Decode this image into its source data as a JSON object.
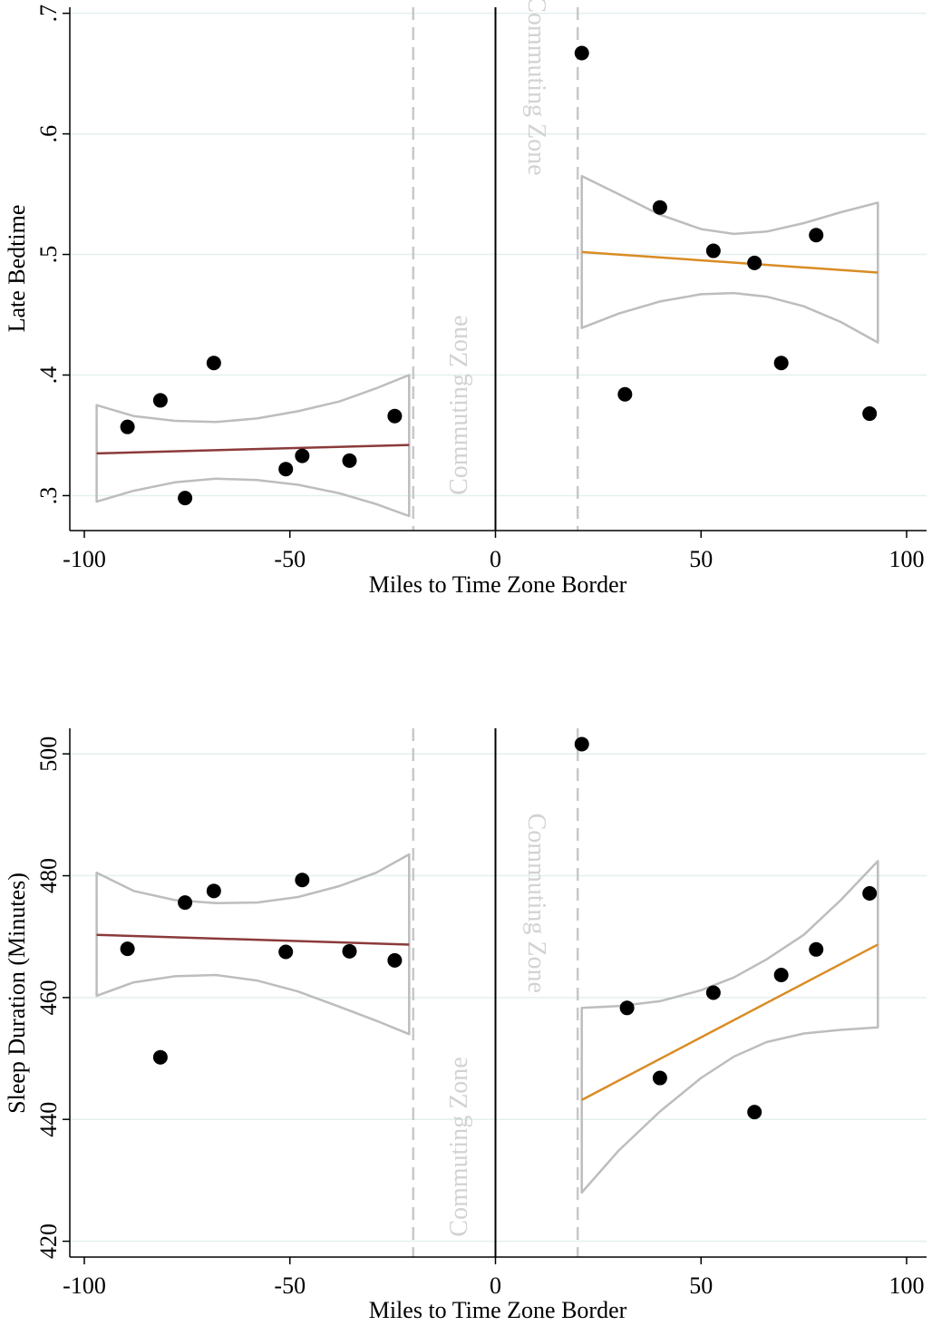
{
  "colors": {
    "grid": "#e3efef",
    "left_fit": "#8b3a3a",
    "right_fit": "#d98c24",
    "ci_band": "#bdbdbd",
    "dashed_line": "#c8c8c8",
    "zone_text": "#d2d2d2",
    "marker": "#000000"
  },
  "chart_data": [
    {
      "type": "scatter",
      "xlabel": "Miles to Time Zone Border",
      "ylabel": "Late Bedtime",
      "xlim": [
        -103,
        104
      ],
      "ylim": [
        0.271,
        0.705
      ],
      "xticks": [
        -100,
        -50,
        0,
        50,
        100
      ],
      "xtick_labels": [
        "-100",
        "-50",
        "0",
        "50",
        "100"
      ],
      "yticks": [
        0.3,
        0.4,
        0.5,
        0.6,
        0.7
      ],
      "ytick_labels": [
        ".3",
        ".4",
        ".5",
        ".6",
        ".7"
      ],
      "border_line_x": 0,
      "dashed_lines_x": [
        -20,
        20
      ],
      "zone_annotations": [
        {
          "text": "Commuting Zone",
          "x": -7,
          "y": 0.375
        },
        {
          "text": "Commuting Zone",
          "x": 8,
          "y": 0.64
        }
      ],
      "series": [
        {
          "side": "left",
          "points": [
            {
              "x": -89.5,
              "y": 0.357
            },
            {
              "x": -81.5,
              "y": 0.379
            },
            {
              "x": -75.5,
              "y": 0.298
            },
            {
              "x": -68.5,
              "y": 0.41
            },
            {
              "x": -51,
              "y": 0.322
            },
            {
              "x": -47,
              "y": 0.333
            },
            {
              "x": -35.5,
              "y": 0.329
            },
            {
              "x": -24.5,
              "y": 0.366
            }
          ],
          "fit": [
            {
              "x": -97,
              "y": 0.335
            },
            {
              "x": -21,
              "y": 0.342
            }
          ],
          "ci_upper": [
            {
              "x": -97,
              "y": 0.375
            },
            {
              "x": -88,
              "y": 0.366
            },
            {
              "x": -78,
              "y": 0.362
            },
            {
              "x": -68,
              "y": 0.361
            },
            {
              "x": -58,
              "y": 0.364
            },
            {
              "x": -48,
              "y": 0.37
            },
            {
              "x": -38,
              "y": 0.378
            },
            {
              "x": -29,
              "y": 0.389
            },
            {
              "x": -21,
              "y": 0.4
            }
          ],
          "ci_lower": [
            {
              "x": -97,
              "y": 0.295
            },
            {
              "x": -88,
              "y": 0.304
            },
            {
              "x": -78,
              "y": 0.311
            },
            {
              "x": -68,
              "y": 0.314
            },
            {
              "x": -58,
              "y": 0.313
            },
            {
              "x": -48,
              "y": 0.309
            },
            {
              "x": -38,
              "y": 0.302
            },
            {
              "x": -29,
              "y": 0.293
            },
            {
              "x": -21,
              "y": 0.283
            }
          ]
        },
        {
          "side": "right",
          "points": [
            {
              "x": 21,
              "y": 0.667
            },
            {
              "x": 31.5,
              "y": 0.384
            },
            {
              "x": 40,
              "y": 0.539
            },
            {
              "x": 53,
              "y": 0.503
            },
            {
              "x": 63,
              "y": 0.493
            },
            {
              "x": 69.5,
              "y": 0.41
            },
            {
              "x": 78,
              "y": 0.516
            },
            {
              "x": 91,
              "y": 0.368
            }
          ],
          "fit": [
            {
              "x": 21,
              "y": 0.502
            },
            {
              "x": 93,
              "y": 0.485
            }
          ],
          "ci_upper": [
            {
              "x": 21,
              "y": 0.565
            },
            {
              "x": 30,
              "y": 0.55
            },
            {
              "x": 40,
              "y": 0.533
            },
            {
              "x": 50,
              "y": 0.521
            },
            {
              "x": 58,
              "y": 0.517
            },
            {
              "x": 66,
              "y": 0.519
            },
            {
              "x": 75,
              "y": 0.526
            },
            {
              "x": 84,
              "y": 0.535
            },
            {
              "x": 93,
              "y": 0.543
            }
          ],
          "ci_lower": [
            {
              "x": 21,
              "y": 0.439
            },
            {
              "x": 30,
              "y": 0.451
            },
            {
              "x": 40,
              "y": 0.461
            },
            {
              "x": 50,
              "y": 0.467
            },
            {
              "x": 58,
              "y": 0.468
            },
            {
              "x": 66,
              "y": 0.465
            },
            {
              "x": 75,
              "y": 0.457
            },
            {
              "x": 84,
              "y": 0.444
            },
            {
              "x": 93,
              "y": 0.427
            }
          ]
        }
      ]
    },
    {
      "type": "scatter",
      "xlabel": "Miles to Time Zone Border",
      "ylabel": "Sleep Duration (Minutes)",
      "xlim": [
        -103,
        104
      ],
      "ylim": [
        417.4,
        504.2
      ],
      "xticks": [
        -100,
        -50,
        0,
        50,
        100
      ],
      "xtick_labels": [
        "-100",
        "-50",
        "0",
        "50",
        "100"
      ],
      "yticks": [
        420,
        440,
        460,
        480,
        500
      ],
      "ytick_labels": [
        "420",
        "440",
        "460",
        "480",
        "500"
      ],
      "border_line_x": 0,
      "dashed_lines_x": [
        -20,
        20
      ],
      "zone_annotations": [
        {
          "text": "Commuting Zone",
          "x": -7,
          "y": 435.5
        },
        {
          "text": "Commuting Zone",
          "x": 8,
          "y": 475.5
        }
      ],
      "series": [
        {
          "side": "left",
          "points": [
            {
              "x": -89.5,
              "y": 468
            },
            {
              "x": -81.5,
              "y": 450.2
            },
            {
              "x": -75.5,
              "y": 475.6
            },
            {
              "x": -68.5,
              "y": 477.5
            },
            {
              "x": -51,
              "y": 467.5
            },
            {
              "x": -47,
              "y": 479.3
            },
            {
              "x": -35.5,
              "y": 467.6
            },
            {
              "x": -24.5,
              "y": 466.1
            }
          ],
          "fit": [
            {
              "x": -97,
              "y": 470.3
            },
            {
              "x": -21,
              "y": 468.7
            }
          ],
          "ci_upper": [
            {
              "x": -97,
              "y": 480.5
            },
            {
              "x": -88,
              "y": 477.5
            },
            {
              "x": -78,
              "y": 476
            },
            {
              "x": -68,
              "y": 475.5
            },
            {
              "x": -58,
              "y": 475.6
            },
            {
              "x": -48,
              "y": 476.5
            },
            {
              "x": -38,
              "y": 478.3
            },
            {
              "x": -29,
              "y": 480.5
            },
            {
              "x": -21,
              "y": 483.5
            }
          ],
          "ci_lower": [
            {
              "x": -97,
              "y": 460.3
            },
            {
              "x": -88,
              "y": 462.5
            },
            {
              "x": -78,
              "y": 463.5
            },
            {
              "x": -68,
              "y": 463.7
            },
            {
              "x": -58,
              "y": 462.8
            },
            {
              "x": -48,
              "y": 461
            },
            {
              "x": -38,
              "y": 458.5
            },
            {
              "x": -29,
              "y": 456.2
            },
            {
              "x": -21,
              "y": 454
            }
          ]
        },
        {
          "side": "right",
          "points": [
            {
              "x": 21,
              "y": 501.6
            },
            {
              "x": 32,
              "y": 458.3
            },
            {
              "x": 40,
              "y": 446.8
            },
            {
              "x": 53,
              "y": 460.8
            },
            {
              "x": 63,
              "y": 441.2
            },
            {
              "x": 69.5,
              "y": 463.7
            },
            {
              "x": 78,
              "y": 467.9
            },
            {
              "x": 91,
              "y": 477.1
            }
          ],
          "fit": [
            {
              "x": 21,
              "y": 443.2
            },
            {
              "x": 93,
              "y": 468.7
            }
          ],
          "ci_upper": [
            {
              "x": 21,
              "y": 458.3
            },
            {
              "x": 30,
              "y": 458.6
            },
            {
              "x": 40,
              "y": 459.4
            },
            {
              "x": 50,
              "y": 461.2
            },
            {
              "x": 58,
              "y": 463.3
            },
            {
              "x": 66,
              "y": 466.3
            },
            {
              "x": 75,
              "y": 470.3
            },
            {
              "x": 84,
              "y": 476
            },
            {
              "x": 93,
              "y": 482.4
            }
          ],
          "ci_lower": [
            {
              "x": 21,
              "y": 428
            },
            {
              "x": 30,
              "y": 434.9
            },
            {
              "x": 40,
              "y": 441.3
            },
            {
              "x": 50,
              "y": 446.8
            },
            {
              "x": 58,
              "y": 450.3
            },
            {
              "x": 66,
              "y": 452.7
            },
            {
              "x": 75,
              "y": 454.1
            },
            {
              "x": 84,
              "y": 454.7
            },
            {
              "x": 93,
              "y": 455.1
            }
          ]
        }
      ]
    }
  ]
}
